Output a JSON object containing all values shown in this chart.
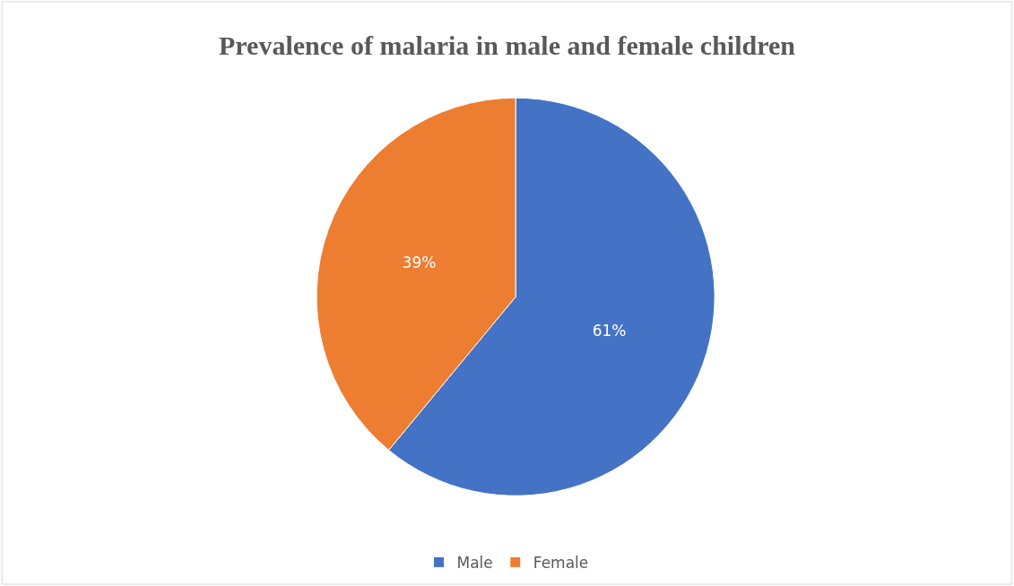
{
  "chart_data": {
    "type": "pie",
    "title": "Prevalence of malaria in male and female children",
    "categories": [
      "Male",
      "Female"
    ],
    "values": [
      61,
      39
    ],
    "colors": [
      "#4472c4",
      "#ed7d31"
    ],
    "value_labels": [
      "61%",
      "39%"
    ],
    "legend": "bottom"
  }
}
